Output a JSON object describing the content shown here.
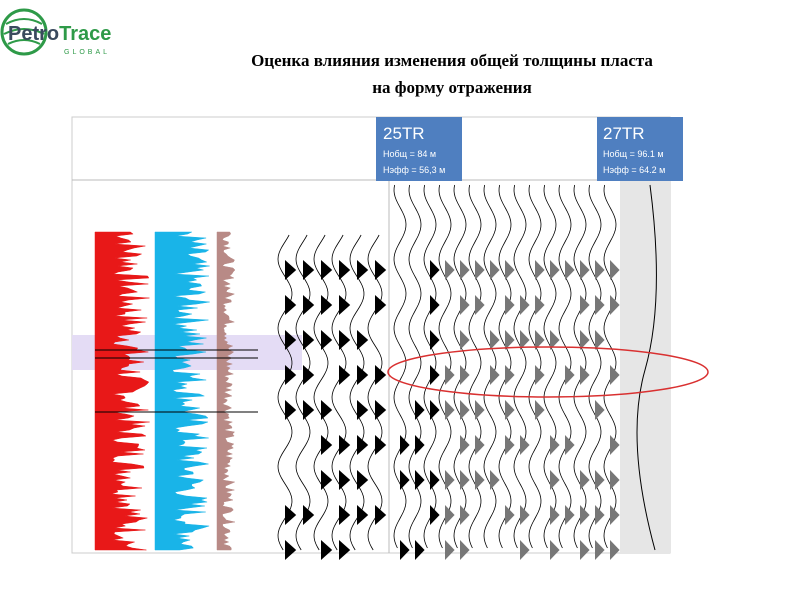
{
  "logo": {
    "name_part1": "Petro",
    "name_part2": "Trace",
    "sub": "GLOBAL"
  },
  "title": {
    "line1": "Оценка влияния изменения общей  толщины пласта",
    "line2": "на форму отражения"
  },
  "wells": [
    {
      "name": "25TR",
      "h_total": "Нобщ = 84 м",
      "h_eff": "Нэфф = 56,3 м"
    },
    {
      "name": "27TR",
      "h_total": "Нобщ = 96.1 м",
      "h_eff": "Нэфф = 64.2 м"
    }
  ]
}
